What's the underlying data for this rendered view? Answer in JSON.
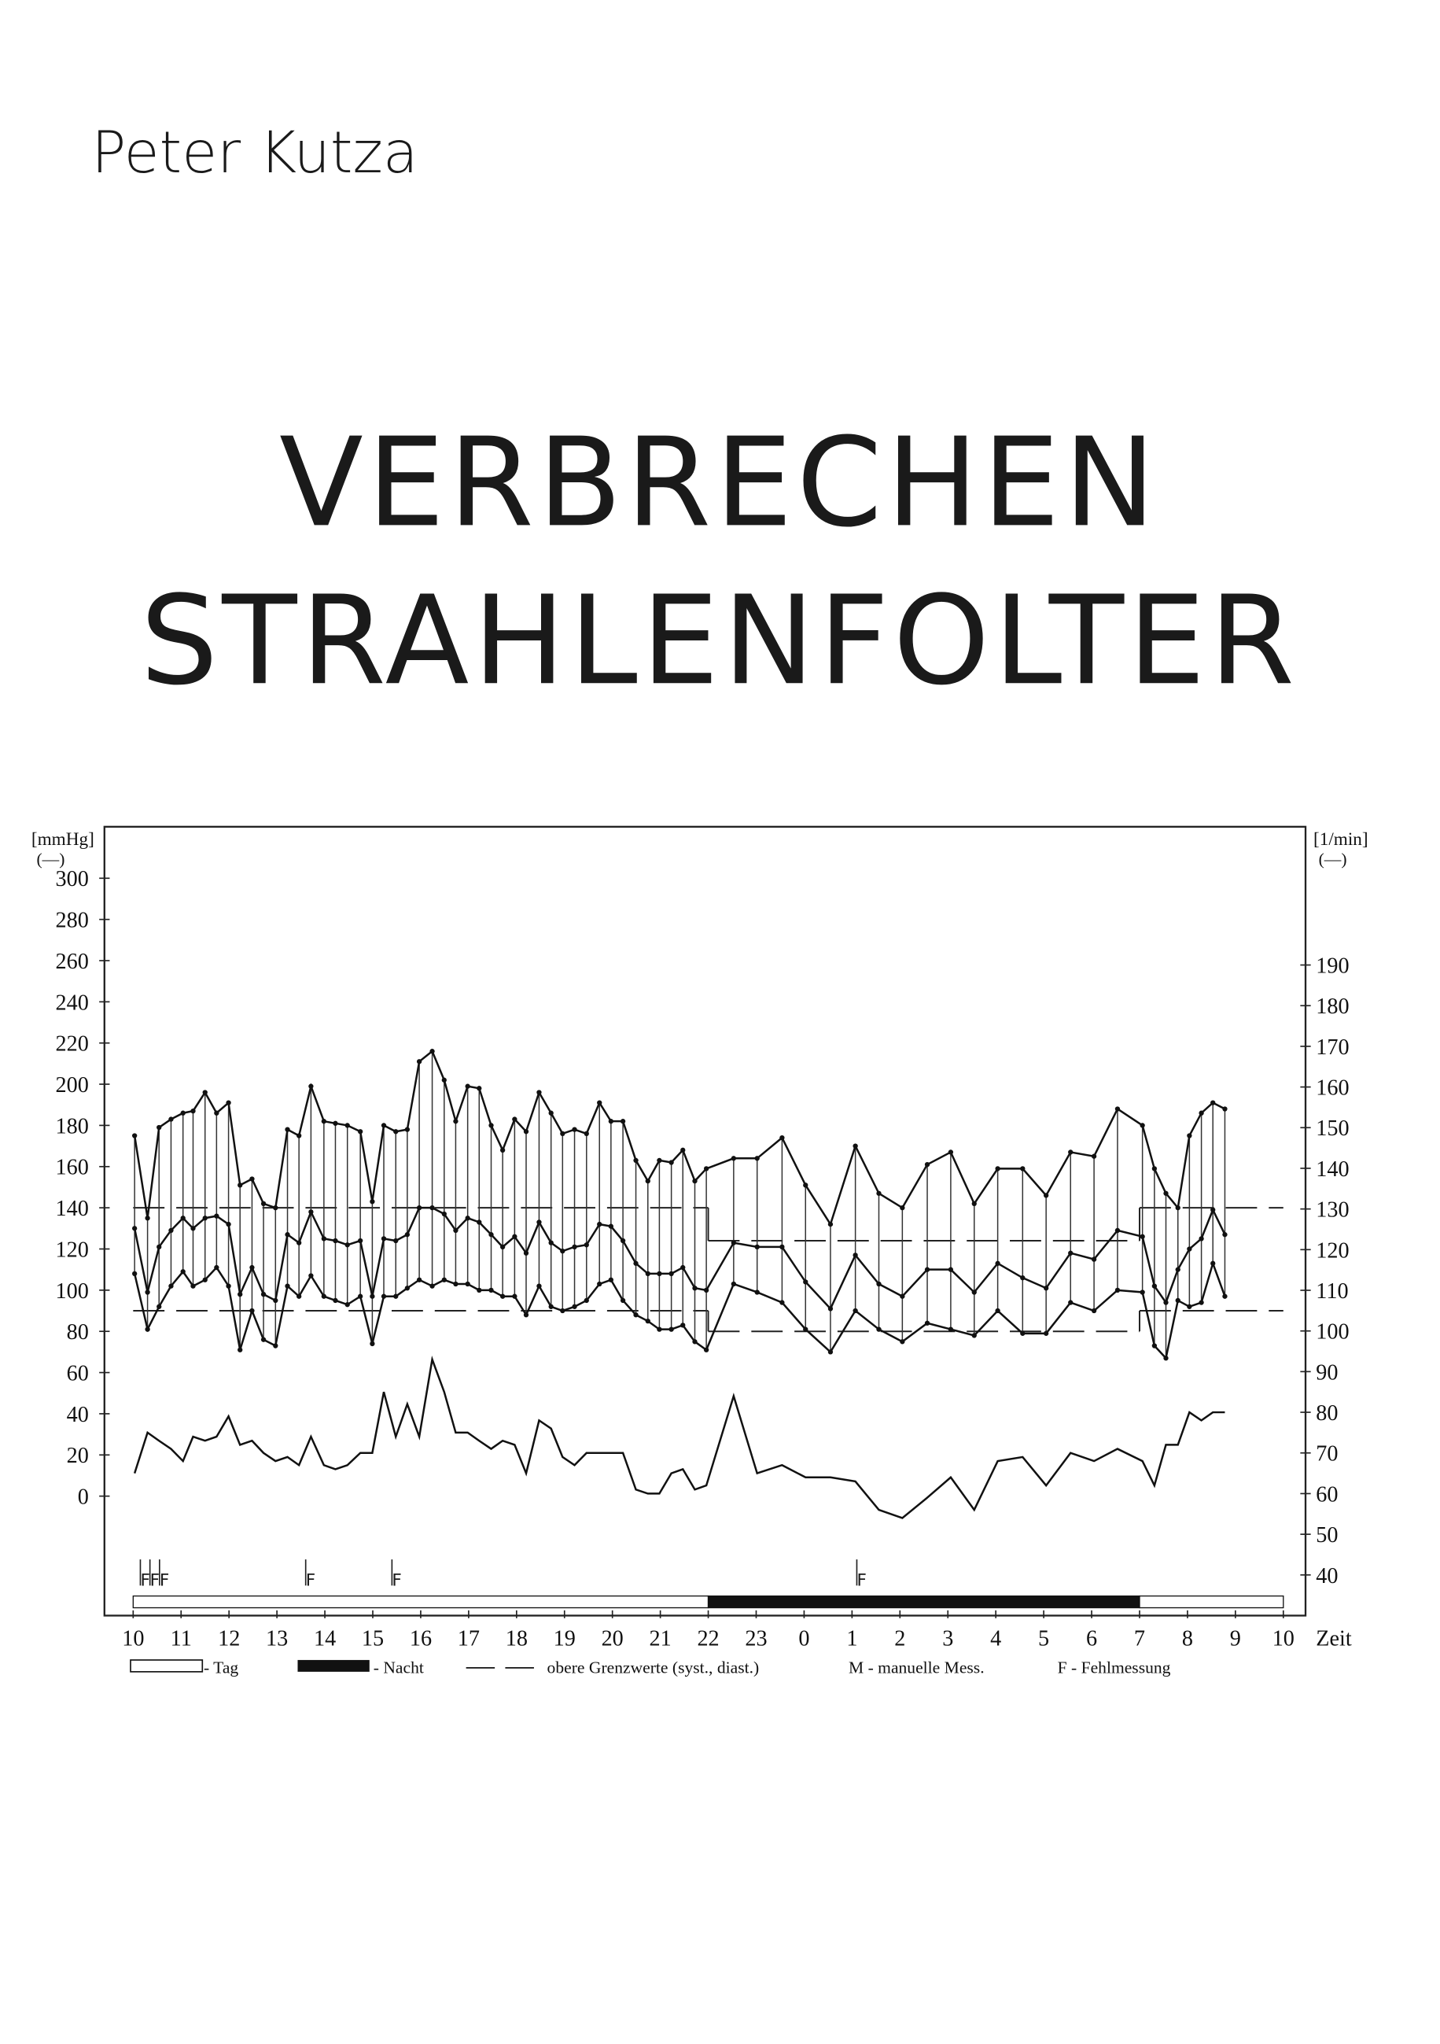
{
  "author": "Peter Kutza",
  "title_lines": [
    "VERBRECHEN",
    "STRAHLENFOLTER"
  ],
  "chart_data": {
    "type": "line",
    "y_unit": "[mmHg]",
    "y_unit_symbol": "(—)",
    "y2_unit": "[1/min]",
    "y2_unit_symbol": "(—)",
    "x_label": "Zeit",
    "xlim": [
      0,
      24
    ],
    "xticks": [
      {
        "value": 0,
        "label": "10"
      },
      {
        "value": 1,
        "label": "11"
      },
      {
        "value": 2,
        "label": "12"
      },
      {
        "value": 3,
        "label": "13"
      },
      {
        "value": 4,
        "label": "14"
      },
      {
        "value": 5,
        "label": "15"
      },
      {
        "value": 6,
        "label": "16"
      },
      {
        "value": 7,
        "label": "17"
      },
      {
        "value": 8,
        "label": "18"
      },
      {
        "value": 9,
        "label": "19"
      },
      {
        "value": 10,
        "label": "20"
      },
      {
        "value": 11,
        "label": "21"
      },
      {
        "value": 12,
        "label": "22"
      },
      {
        "value": 13,
        "label": "23"
      },
      {
        "value": 14,
        "label": "0"
      },
      {
        "value": 15,
        "label": "1"
      },
      {
        "value": 16,
        "label": "2"
      },
      {
        "value": 17,
        "label": "3"
      },
      {
        "value": 18,
        "label": "4"
      },
      {
        "value": 19,
        "label": "5"
      },
      {
        "value": 20,
        "label": "6"
      },
      {
        "value": 21,
        "label": "7"
      },
      {
        "value": 22,
        "label": "8"
      },
      {
        "value": 23,
        "label": "9"
      },
      {
        "value": 24,
        "label": "10"
      }
    ],
    "ylim": [
      -58,
      325
    ],
    "yticks": [
      0,
      20,
      40,
      60,
      80,
      100,
      120,
      140,
      160,
      180,
      200,
      220,
      240,
      260,
      280,
      300
    ],
    "y2lim": [
      30,
      224
    ],
    "y2ticks": [
      40,
      50,
      60,
      70,
      80,
      90,
      100,
      110,
      120,
      130,
      140,
      150,
      160,
      170,
      180,
      190
    ],
    "x": [
      0.03,
      0.3,
      0.54,
      0.79,
      1.04,
      1.25,
      1.5,
      1.74,
      1.99,
      2.23,
      2.48,
      2.72,
      2.97,
      3.22,
      3.46,
      3.71,
      3.98,
      4.22,
      4.47,
      4.74,
      4.99,
      5.23,
      5.48,
      5.72,
      5.97,
      6.24,
      6.49,
      6.73,
      6.98,
      7.22,
      7.47,
      7.71,
      7.96,
      8.2,
      8.47,
      8.72,
      8.96,
      9.21,
      9.46,
      9.73,
      9.97,
      10.22,
      10.49,
      10.74,
      10.98,
      11.23,
      11.47,
      11.72,
      11.96,
      12.53,
      13.02,
      13.54,
      14.03,
      14.55,
      15.07,
      15.56,
      16.05,
      16.57,
      17.06,
      17.55,
      18.04,
      18.56,
      19.05,
      19.56,
      20.05,
      20.54,
      21.06,
      21.31,
      21.55,
      21.8,
      22.04,
      22.29,
      22.53,
      22.78
    ],
    "series": [
      {
        "color": "#111",
        "values": [
          175,
          135,
          179,
          183,
          186,
          187,
          196,
          186,
          191,
          151,
          154,
          142,
          140,
          178,
          175,
          199,
          182,
          181,
          180,
          177,
          143,
          180,
          177,
          178,
          211,
          216,
          202,
          182,
          199,
          198,
          180,
          168,
          183,
          177,
          196,
          186,
          176,
          178,
          176,
          191,
          182,
          182,
          163,
          153,
          163,
          162,
          168,
          153,
          159,
          164,
          164,
          174,
          151,
          132,
          170,
          147,
          140,
          161,
          167,
          142,
          159,
          159,
          146,
          167,
          165,
          188,
          180,
          159,
          147,
          140,
          175,
          186,
          191,
          188
        ]
      },
      {
        "color": "#111",
        "values": [
          130,
          99,
          121,
          129,
          135,
          130,
          135,
          136,
          132,
          98,
          111,
          98,
          95,
          127,
          123,
          138,
          125,
          124,
          122,
          124,
          97,
          125,
          124,
          127,
          140,
          140,
          137,
          129,
          135,
          133,
          127,
          121,
          126,
          118,
          133,
          123,
          119,
          121,
          122,
          132,
          131,
          124,
          113,
          108,
          108,
          108,
          111,
          101,
          100,
          123,
          121,
          121,
          104,
          91,
          117,
          103,
          97,
          110,
          110,
          99,
          113,
          106,
          101,
          118,
          115,
          129,
          126,
          102,
          94,
          110,
          120,
          125,
          139,
          127
        ]
      },
      {
        "color": "#111",
        "values": [
          108,
          81,
          92,
          102,
          109,
          102,
          105,
          111,
          102,
          71,
          90,
          76,
          73,
          102,
          97,
          107,
          97,
          95,
          93,
          97,
          74,
          97,
          97,
          101,
          105,
          102,
          105,
          103,
          103,
          100,
          100,
          97,
          97,
          88,
          102,
          92,
          90,
          92,
          95,
          103,
          105,
          95,
          88,
          85,
          81,
          81,
          83,
          75,
          71,
          103,
          99,
          94,
          81,
          70,
          90,
          81,
          75,
          84,
          81,
          78,
          90,
          79,
          79,
          94,
          90,
          100,
          99,
          73,
          67,
          95,
          92,
          94,
          113,
          97
        ]
      },
      {
        "color": "#111",
        "axis": "y2",
        "values": [
          65,
          75,
          73,
          71,
          68,
          74,
          73,
          74,
          79,
          72,
          73,
          70,
          68,
          69,
          67,
          74,
          67,
          66,
          67,
          70,
          70,
          85,
          74,
          82,
          74,
          93,
          85,
          75,
          75,
          73,
          71,
          73,
          72,
          65,
          78,
          76,
          69,
          67,
          70,
          70,
          70,
          70,
          61,
          60,
          60,
          65,
          66,
          61,
          62,
          84,
          65,
          67,
          64,
          64,
          63,
          56,
          54,
          59,
          64,
          56,
          68,
          69,
          62,
          70,
          68,
          71,
          68,
          62,
          72,
          72,
          80,
          78,
          80,
          80
        ]
      }
    ],
    "limits": [
      {
        "x": [
          0,
          12
        ],
        "systolic": 140,
        "diastolic": 90
      },
      {
        "x": [
          12,
          21
        ],
        "systolic": 124,
        "diastolic": 80
      },
      {
        "x": [
          21,
          24
        ],
        "systolic": 140,
        "diastolic": 90
      }
    ],
    "periods": [
      {
        "x": [
          0,
          12
        ],
        "fill": "#ffffff"
      },
      {
        "x": [
          12,
          21
        ],
        "fill": "#111111"
      },
      {
        "x": [
          21,
          24
        ],
        "fill": "#ffffff"
      }
    ],
    "error_marks": {
      "label": "F",
      "x": [
        0.15,
        0.35,
        0.55,
        3.6,
        5.4,
        15.1
      ]
    },
    "legend_items": [
      "- Tag",
      "- Nacht",
      "obere Grenzwerte (syst., diast.)",
      "M - manuelle Mess.",
      "F - Fehlmessung"
    ]
  }
}
